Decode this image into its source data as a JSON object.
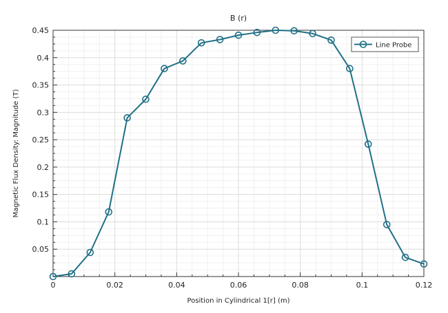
{
  "chart_data": {
    "type": "line",
    "title": "B (r)",
    "xlabel": "Position in Cylindrical 1[r] (m)",
    "ylabel": "Magnetic Flux Density: Magnitude (T)",
    "xlim": [
      0,
      0.12
    ],
    "ylim": [
      0,
      0.45
    ],
    "x_ticks": [
      "0",
      "0.02",
      "0.04",
      "0.06",
      "0.08",
      "0.1",
      "0.12"
    ],
    "y_ticks": [
      "0.05",
      "0.1",
      "0.15",
      "0.2",
      "0.25",
      "0.3",
      "0.35",
      "0.4",
      "0.45"
    ],
    "grid": true,
    "legend_position": "top-right",
    "series": [
      {
        "name": "Line Probe",
        "color": "#1f6f86",
        "marker": "circle",
        "x": [
          0.0,
          0.006,
          0.012,
          0.018,
          0.024,
          0.03,
          0.036,
          0.042,
          0.048,
          0.054,
          0.06,
          0.066,
          0.072,
          0.078,
          0.084,
          0.09,
          0.096,
          0.102,
          0.108,
          0.114,
          0.12
        ],
        "y": [
          0.0,
          0.005,
          0.044,
          0.118,
          0.29,
          0.324,
          0.38,
          0.394,
          0.427,
          0.433,
          0.441,
          0.446,
          0.45,
          0.449,
          0.444,
          0.432,
          0.38,
          0.242,
          0.095,
          0.035,
          0.023
        ]
      }
    ]
  }
}
